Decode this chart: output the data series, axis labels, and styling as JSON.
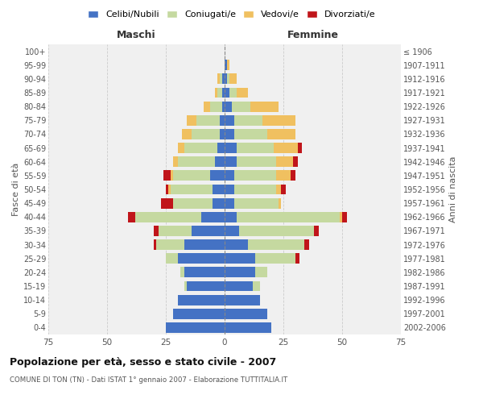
{
  "age_groups": [
    "0-4",
    "5-9",
    "10-14",
    "15-19",
    "20-24",
    "25-29",
    "30-34",
    "35-39",
    "40-44",
    "45-49",
    "50-54",
    "55-59",
    "60-64",
    "65-69",
    "70-74",
    "75-79",
    "80-84",
    "85-89",
    "90-94",
    "95-99",
    "100+"
  ],
  "birth_years": [
    "2002-2006",
    "1997-2001",
    "1992-1996",
    "1987-1991",
    "1982-1986",
    "1977-1981",
    "1972-1976",
    "1967-1971",
    "1962-1966",
    "1957-1961",
    "1952-1956",
    "1947-1951",
    "1942-1946",
    "1937-1941",
    "1932-1936",
    "1927-1931",
    "1922-1926",
    "1917-1921",
    "1912-1916",
    "1907-1911",
    "≤ 1906"
  ],
  "maschi": {
    "celibe": [
      25,
      22,
      20,
      16,
      17,
      20,
      17,
      14,
      10,
      5,
      5,
      6,
      4,
      3,
      2,
      2,
      1,
      1,
      1,
      0,
      0
    ],
    "coniugato": [
      0,
      0,
      0,
      1,
      2,
      5,
      12,
      14,
      28,
      17,
      18,
      16,
      16,
      14,
      12,
      10,
      5,
      2,
      1,
      0,
      0
    ],
    "vedovo": [
      0,
      0,
      0,
      0,
      0,
      0,
      0,
      0,
      0,
      0,
      1,
      1,
      2,
      3,
      4,
      4,
      3,
      1,
      1,
      0,
      0
    ],
    "divorziato": [
      0,
      0,
      0,
      0,
      0,
      0,
      1,
      2,
      3,
      5,
      1,
      3,
      0,
      0,
      0,
      0,
      0,
      0,
      0,
      0,
      0
    ]
  },
  "femmine": {
    "nubile": [
      20,
      18,
      15,
      12,
      13,
      13,
      10,
      6,
      5,
      4,
      4,
      4,
      5,
      5,
      4,
      4,
      3,
      2,
      1,
      1,
      0
    ],
    "coniugata": [
      0,
      0,
      0,
      3,
      5,
      17,
      24,
      32,
      44,
      19,
      18,
      18,
      17,
      16,
      14,
      12,
      8,
      3,
      1,
      0,
      0
    ],
    "vedova": [
      0,
      0,
      0,
      0,
      0,
      0,
      0,
      0,
      1,
      1,
      2,
      6,
      7,
      10,
      12,
      14,
      12,
      5,
      3,
      1,
      0
    ],
    "divorziata": [
      0,
      0,
      0,
      0,
      0,
      2,
      2,
      2,
      2,
      0,
      2,
      2,
      2,
      2,
      0,
      0,
      0,
      0,
      0,
      0,
      0
    ]
  },
  "colors": {
    "celibe": "#4472C4",
    "coniugato": "#c5d9a0",
    "vedovo": "#f0c060",
    "divorziato": "#C0151A"
  },
  "xlim": 75,
  "title": "Popolazione per età, sesso e stato civile - 2007",
  "subtitle": "COMUNE DI TON (TN) - Dati ISTAT 1° gennaio 2007 - Elaborazione TUTTITALIA.IT",
  "ylabel_left": "Fasce di età",
  "ylabel_right": "Anni di nascita",
  "xlabel_left": "Maschi",
  "xlabel_right": "Femmine",
  "legend_labels": [
    "Celibi/Nubili",
    "Coniugati/e",
    "Vedovi/e",
    "Divorziati/e"
  ],
  "bg_color": "#f0f0f0",
  "grid_color": "#cccccc"
}
